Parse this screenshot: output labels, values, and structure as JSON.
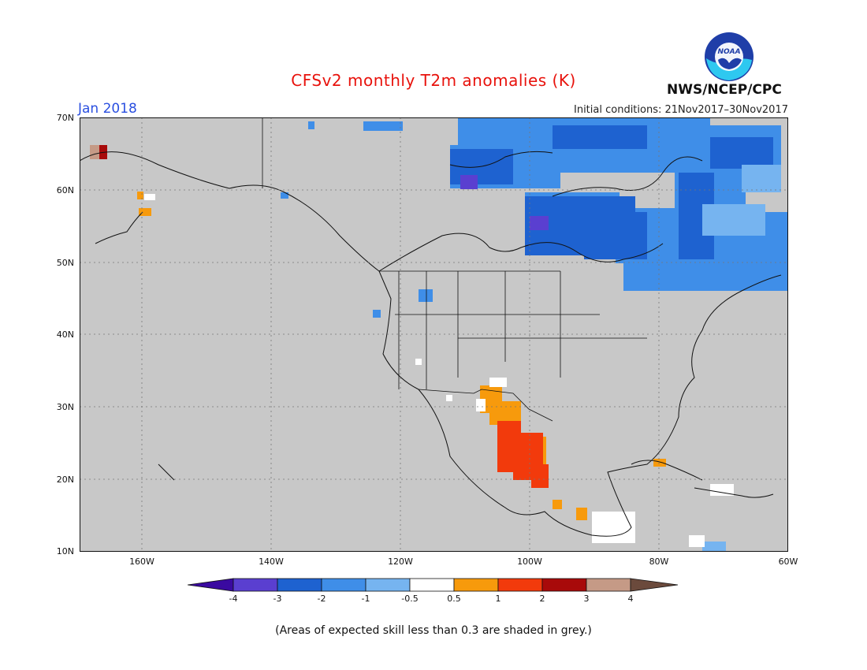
{
  "header": {
    "title": "CFSv2 monthly T2m anomalies (K)",
    "month": "Jan 2018",
    "initial_conditions": "Initial conditions: 21Nov2017–30Nov2017",
    "agency": "NWS/NCEP/CPC",
    "logo_text": "NOAA"
  },
  "axes": {
    "lat_labels": [
      "70N",
      "60N",
      "50N",
      "40N",
      "30N",
      "20N",
      "10N"
    ],
    "lon_labels": [
      "160W",
      "140W",
      "120W",
      "100W",
      "80W",
      "60W"
    ]
  },
  "colorbar": {
    "labels": [
      "-4",
      "-3",
      "-2",
      "-1",
      "-0.5",
      "0.5",
      "1",
      "2",
      "3",
      "4"
    ],
    "colors": [
      "#3a0aa0",
      "#5a3fd0",
      "#1e62d0",
      "#3f8ee8",
      "#76b4f0",
      "#ffffff",
      "#f79a0c",
      "#f23a0c",
      "#a80a0a",
      "#c59a86",
      "#6b4a3c"
    ]
  },
  "footer": {
    "note": "(Areas of expected skill less than 0.3 are shaded in grey.)"
  },
  "colors": {
    "grey_background": "#c8c8c8",
    "title_red": "#e8120c",
    "month_blue": "#2a4fe0"
  }
}
